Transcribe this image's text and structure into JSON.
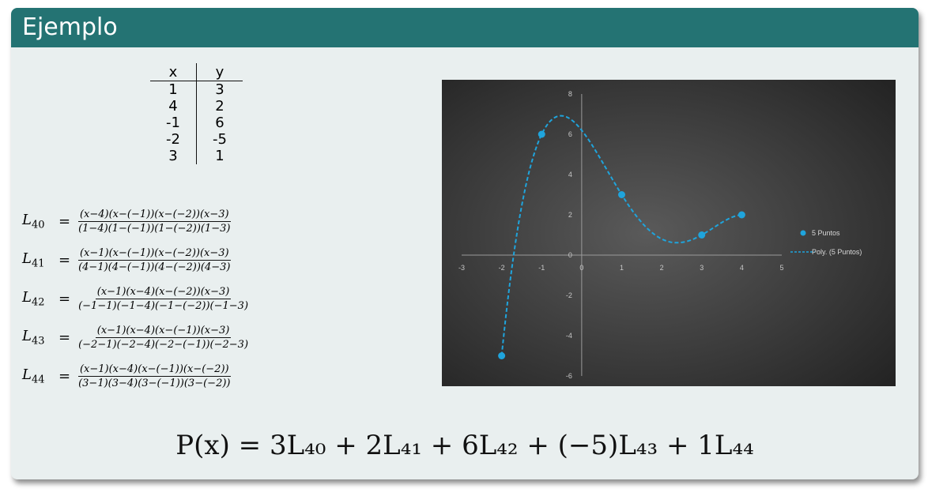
{
  "block": {
    "title": "Ejemplo"
  },
  "table": {
    "headers": [
      "x",
      "y"
    ],
    "rows": [
      [
        "1",
        "3"
      ],
      [
        "4",
        "2"
      ],
      [
        "-1",
        "6"
      ],
      [
        "-2",
        "-5"
      ],
      [
        "3",
        "1"
      ]
    ]
  },
  "formulas": [
    {
      "label": "L",
      "sub": "40",
      "num": "(x−4)(x−(−1))(x−(−2))(x−3)",
      "den": "(1−4)(1−(−1))(1−(−2))(1−3)"
    },
    {
      "label": "L",
      "sub": "41",
      "num": "(x−1)(x−(−1))(x−(−2))(x−3)",
      "den": "(4−1)(4−(−1))(4−(−2))(4−3)"
    },
    {
      "label": "L",
      "sub": "42",
      "num": "(x−1)(x−4)(x−(−2))(x−3)",
      "den": "(−1−1)(−1−4)(−1−(−2))(−1−3)"
    },
    {
      "label": "L",
      "sub": "43",
      "num": "(x−1)(x−4)(x−(−1))(x−3)",
      "den": "(−2−1)(−2−4)(−2−(−1))(−2−3)"
    },
    {
      "label": "L",
      "sub": "44",
      "num": "(x−1)(x−4)(x−(−1))(x−(−2))",
      "den": "(3−1)(3−4)(3−(−1))(3−(−2))"
    }
  ],
  "polynomial": "P(x) = 3L₄₀ + 2L₄₁ + 6L₄₂ + (−5)L₄₃ + 1L₄₄",
  "chart_data": {
    "type": "scatter",
    "series": [
      {
        "name": "5 Puntos",
        "x": [
          -2,
          -1,
          1,
          3,
          4
        ],
        "y": [
          -5,
          6,
          3,
          1,
          2
        ],
        "color": "#1fa4dc"
      },
      {
        "name": "Poly. (5 Puntos)",
        "type": "line",
        "style": "dashed",
        "color": "#1fa4dc",
        "x": [
          -2,
          -1,
          1,
          3,
          4
        ],
        "y": [
          -5,
          6,
          3,
          1,
          2
        ]
      }
    ],
    "xlim": [
      -3,
      5
    ],
    "ylim": [
      -6,
      8
    ],
    "x_ticks": [
      "-3",
      "-2",
      "-1",
      "0",
      "1",
      "2",
      "3",
      "4",
      "5"
    ],
    "y_ticks": [
      "-6",
      "-4",
      "-2",
      "0",
      "2",
      "4",
      "6",
      "8"
    ],
    "legend_position": "right",
    "background": "#3c3c3c"
  }
}
